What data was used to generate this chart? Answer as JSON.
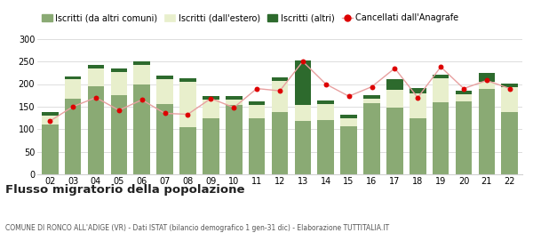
{
  "years": [
    "02",
    "03",
    "04",
    "05",
    "06",
    "07",
    "08",
    "09",
    "10",
    "11",
    "12",
    "13",
    "14",
    "15",
    "16",
    "17",
    "18",
    "19",
    "20",
    "21",
    "22"
  ],
  "iscritti_comuni": [
    110,
    167,
    195,
    175,
    200,
    155,
    105,
    125,
    153,
    125,
    138,
    118,
    120,
    106,
    158,
    148,
    125,
    160,
    162,
    190,
    138
  ],
  "iscritti_estero": [
    20,
    43,
    40,
    52,
    42,
    55,
    100,
    40,
    12,
    28,
    68,
    35,
    35,
    18,
    10,
    40,
    55,
    52,
    15,
    15,
    55
  ],
  "iscritti_altri": [
    8,
    6,
    8,
    8,
    8,
    8,
    8,
    8,
    8,
    8,
    8,
    100,
    8,
    8,
    8,
    22,
    12,
    8,
    8,
    20,
    8
  ],
  "cancellati": [
    118,
    150,
    170,
    142,
    165,
    135,
    133,
    168,
    148,
    190,
    185,
    250,
    200,
    173,
    194,
    235,
    170,
    238,
    190,
    208,
    190
  ],
  "color_comuni": "#8aaa74",
  "color_estero": "#e8efcc",
  "color_altri": "#2d6a2d",
  "color_cancellati": "#dd0000",
  "color_cancellati_line": "#e8a0a0",
  "title": "Flusso migratorio della popolazione",
  "subtitle": "COMUNE DI RONCO ALL'ADIGE (VR) - Dati ISTAT (bilancio demografico 1 gen-31 dic) - Elaborazione TUTTITALIA.IT",
  "legend_comuni": "Iscritti (da altri comuni)",
  "legend_estero": "Iscritti (dall'estero)",
  "legend_altri": "Iscritti (altri)",
  "legend_cancellati": "Cancellati dall'Anagrafe",
  "ylim": [
    0,
    320
  ],
  "yticks": [
    0,
    50,
    100,
    150,
    200,
    250,
    300
  ],
  "background_color": "#ffffff",
  "grid_color": "#d0d0d0"
}
